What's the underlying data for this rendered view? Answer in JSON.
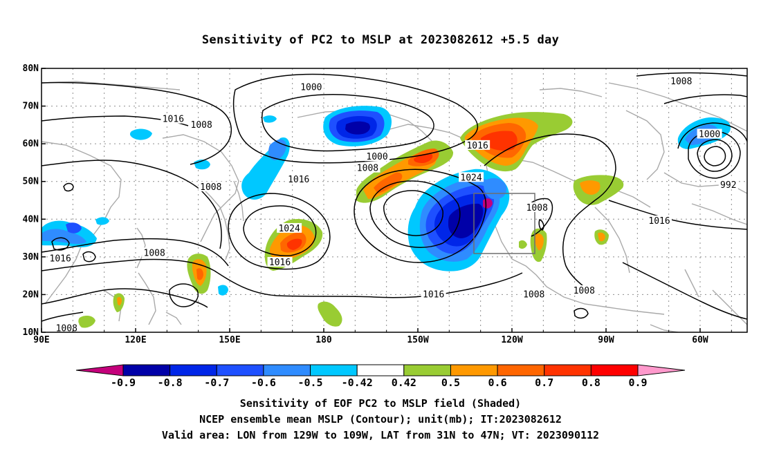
{
  "title": "Sensitivity of PC2 to MSLP at 2023082612 +5.5 day",
  "map": {
    "lon_labels": [
      "90E",
      "120E",
      "150E",
      "180",
      "150W",
      "120W",
      "90W",
      "60W"
    ],
    "lat_labels": [
      "80N",
      "70N",
      "60N",
      "50N",
      "40N",
      "30N",
      "20N",
      "10N"
    ],
    "extent": {
      "lon_min": 90,
      "lon_max": 315,
      "lat_min": 10,
      "lat_max": 80
    },
    "grid": "dotted",
    "colors": {
      "coast": "#a9a9a9",
      "contour": "#000000",
      "box": "#6e6e6e"
    },
    "contour_labels": [
      {
        "text": "1000",
        "lon": 176,
        "lat": 75
      },
      {
        "text": "1016",
        "lon": 132,
        "lat": 66.5
      },
      {
        "text": "1008",
        "lon": 141,
        "lat": 65
      },
      {
        "text": "1000",
        "lon": 197,
        "lat": 56.5
      },
      {
        "text": "1008",
        "lon": 194,
        "lat": 53.5
      },
      {
        "text": "1016",
        "lon": 229,
        "lat": 59.5
      },
      {
        "text": "1024",
        "lon": 227,
        "lat": 51
      },
      {
        "text": "1016",
        "lon": 172,
        "lat": 50.5
      },
      {
        "text": "1008",
        "lon": 144,
        "lat": 48.5
      },
      {
        "text": "1024",
        "lon": 169,
        "lat": 37.5
      },
      {
        "text": "1016",
        "lon": 166,
        "lat": 28.5
      },
      {
        "text": "1016",
        "lon": 96,
        "lat": 29.5
      },
      {
        "text": "1008",
        "lon": 126,
        "lat": 31
      },
      {
        "text": "1016",
        "lon": 215,
        "lat": 20
      },
      {
        "text": "1008",
        "lon": 248,
        "lat": 43
      },
      {
        "text": "1008",
        "lon": 247,
        "lat": 20
      },
      {
        "text": "1008",
        "lon": 263,
        "lat": 21
      },
      {
        "text": "1016",
        "lon": 287,
        "lat": 39.5
      },
      {
        "text": "1008",
        "lon": 294,
        "lat": 76.5
      },
      {
        "text": "1000",
        "lon": 303,
        "lat": 62.5
      },
      {
        "text": "992",
        "lon": 309,
        "lat": 49
      },
      {
        "text": "1008",
        "lon": 98,
        "lat": 11
      }
    ]
  },
  "colorbar": {
    "labels": [
      "-0.9",
      "-0.8",
      "-0.7",
      "-0.6",
      "-0.5",
      "-0.42",
      "0.42",
      "0.5",
      "0.6",
      "0.7",
      "0.8",
      "0.9"
    ],
    "colors": [
      "#c4007b",
      "#0000a8",
      "#0026e8",
      "#1e50ff",
      "#2f8cff",
      "#00c8ff",
      "#ffffff",
      "#99cc33",
      "#ff9900",
      "#ff6600",
      "#ff3300",
      "#ff0000",
      "#ff99cc"
    ]
  },
  "caption": {
    "line1": "Sensitivity of EOF PC2 to MSLP field (Shaded)",
    "line2": "NCEP ensemble mean MSLP (Contour); unit(mb); IT:2023082612",
    "line3": "Valid area: LON from 129W to 109W, LAT from 31N to 47N; VT: 2023090112"
  }
}
